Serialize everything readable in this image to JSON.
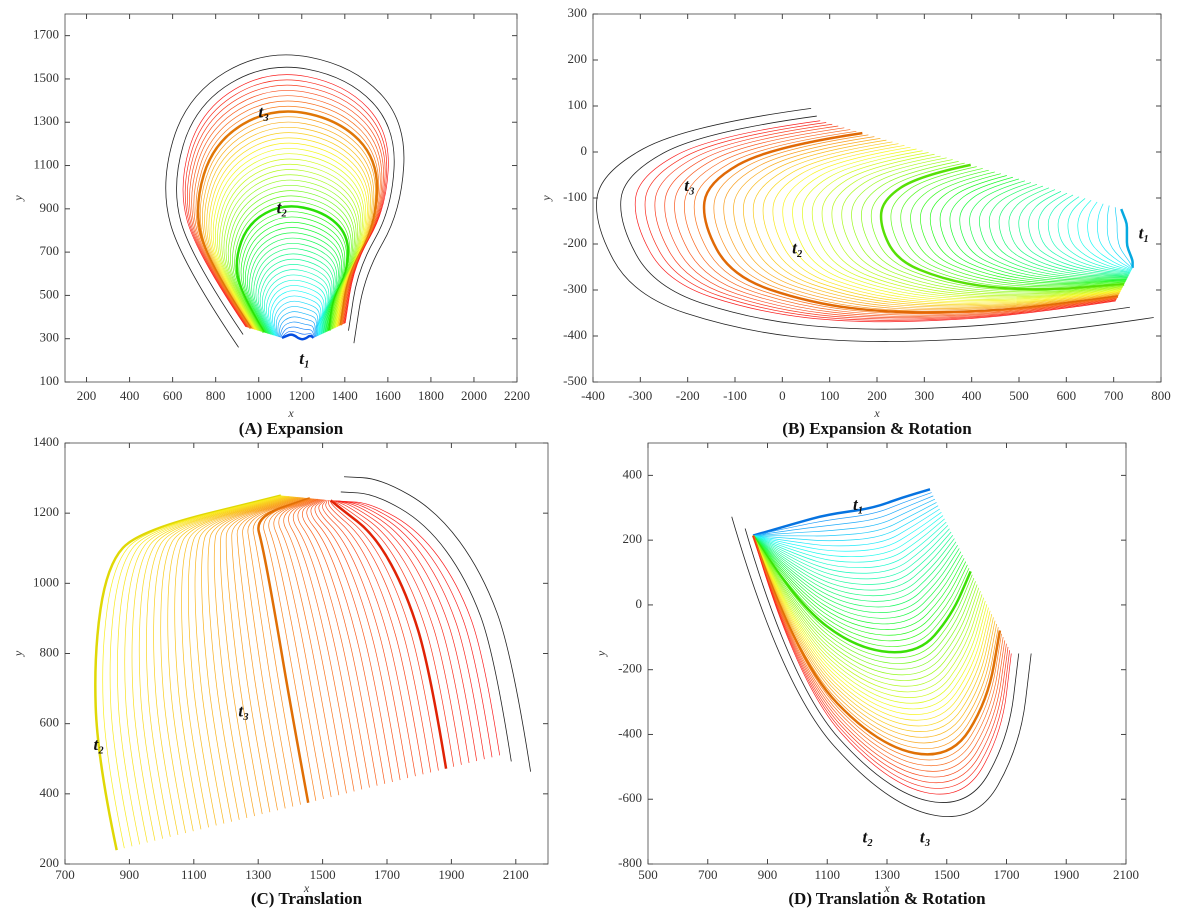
{
  "chart_data": [
    {
      "type": "contour",
      "title": "(A) Expansion",
      "xlabel": "x",
      "ylabel": "y",
      "xlim": [
        100,
        2200
      ],
      "ylim": [
        100,
        1800
      ],
      "xticks": [
        200,
        400,
        600,
        800,
        1000,
        1200,
        1400,
        1600,
        1800,
        2000,
        2200
      ],
      "yticks": [
        100,
        300,
        500,
        700,
        900,
        1100,
        1300,
        1500,
        1700
      ],
      "annotations": [
        "t₃",
        "t₂",
        "t₁"
      ]
    },
    {
      "type": "contour",
      "title": "(B) Expansion & Rotation",
      "xlabel": "x",
      "ylabel": "y",
      "xlim": [
        -400,
        800
      ],
      "ylim": [
        -500,
        300
      ],
      "xticks": [
        -400,
        -300,
        -200,
        -100,
        0,
        100,
        200,
        300,
        400,
        500,
        600,
        700,
        800
      ],
      "yticks": [
        -500,
        -400,
        -300,
        -200,
        -100,
        0,
        100,
        200,
        300
      ],
      "annotations": [
        "t₁",
        "t₂",
        "t₃"
      ]
    },
    {
      "type": "contour",
      "title": "(C) Translation",
      "xlabel": "x",
      "ylabel": "y",
      "xlim": [
        700,
        2200
      ],
      "ylim": [
        200,
        1400
      ],
      "xticks": [
        700,
        900,
        1100,
        1300,
        1500,
        1700,
        1900,
        2100
      ],
      "yticks": [
        200,
        400,
        600,
        800,
        1000,
        1200,
        1400
      ],
      "annotations": [
        "t₂",
        "t₃"
      ]
    },
    {
      "type": "contour",
      "title": "(D) Translation & Rotation",
      "xlabel": "x",
      "ylabel": "y",
      "xlim": [
        500,
        2100
      ],
      "ylim": [
        -800,
        500
      ],
      "xticks": [
        500,
        700,
        900,
        1100,
        1300,
        1500,
        1700,
        1900,
        2100
      ],
      "yticks": [
        -800,
        -600,
        -400,
        -200,
        0,
        200,
        400
      ],
      "annotations": [
        "t₁",
        "t₂",
        "t₃"
      ]
    }
  ]
}
